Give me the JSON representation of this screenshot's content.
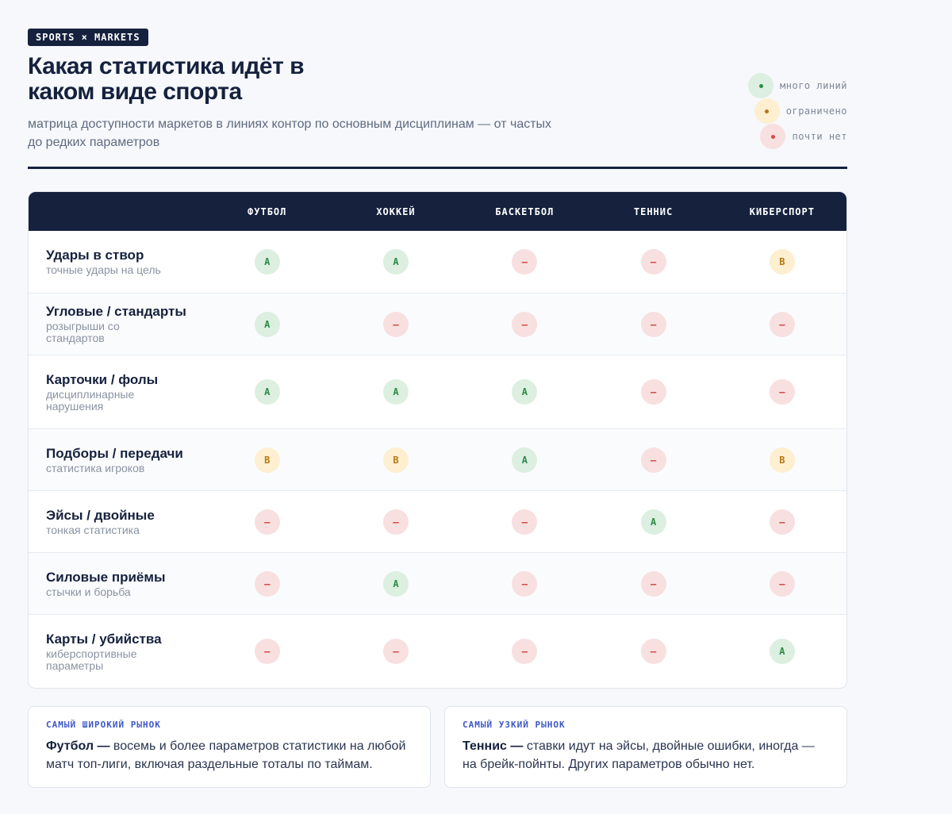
{
  "header": {
    "tag": "SPORTS × MARKETS",
    "title": "Какая статистика идёт в каком виде спорта",
    "subtitle": "матрица доступности маркетов в линиях контор по основным дисциплинам — от частых до редких параметров"
  },
  "legend": [
    {
      "level": "A",
      "label": "много линий",
      "color": "#2e8a46",
      "bg": "#dcefe0"
    },
    {
      "level": "B",
      "label": "ограничено",
      "color": "#b57716",
      "bg": "#fdefd0"
    },
    {
      "level": "C",
      "label": "почти нет",
      "color": "#d44a4a",
      "bg": "#f8e0e0"
    }
  ],
  "table": {
    "columns": [
      "ФУТБОЛ",
      "ХОККЕЙ",
      "БАСКЕТБОЛ",
      "ТЕННИС",
      "КИБЕРСПОРТ"
    ],
    "rows": [
      {
        "title": "Удары в створ",
        "sub": "точные удары на цель",
        "cells": [
          "A",
          "A",
          "C",
          "C",
          "B"
        ]
      },
      {
        "title": "Угловые / стандарты",
        "sub": "розыгрыши со стандартов",
        "cells": [
          "A",
          "C",
          "C",
          "C",
          "C"
        ]
      },
      {
        "title": "Карточки / фолы",
        "sub": "дисциплинарные нарушения",
        "cells": [
          "A",
          "A",
          "A",
          "C",
          "C"
        ]
      },
      {
        "title": "Подборы / передачи",
        "sub": "статистика игроков",
        "cells": [
          "B",
          "B",
          "A",
          "C",
          "B"
        ]
      },
      {
        "title": "Эйсы / двойные",
        "sub": "тонкая статистика",
        "cells": [
          "C",
          "C",
          "C",
          "A",
          "C"
        ]
      },
      {
        "title": "Силовые приёмы",
        "sub": "стычки и борьба",
        "cells": [
          "C",
          "A",
          "C",
          "C",
          "C"
        ]
      },
      {
        "title": "Карты / убийства",
        "sub": "киберспортивные параметры",
        "cells": [
          "C",
          "C",
          "C",
          "C",
          "A"
        ]
      }
    ],
    "badge_text": {
      "A": "A",
      "B": "B",
      "C": "—"
    }
  },
  "cards": [
    {
      "kicker": "САМЫЙ ШИРОКИЙ РЫНОК",
      "lead": "Футбол —",
      "text": " восемь и более параметров статистики на любой матч топ-лиги, включая раздельные тоталы по таймам."
    },
    {
      "kicker": "САМЫЙ УЗКИЙ РЫНОК",
      "lead": "Теннис —",
      "text": " ставки идут на эйсы, двойные ошибки, иногда — на брейк-пойнты. Других параметров обычно нет."
    }
  ]
}
